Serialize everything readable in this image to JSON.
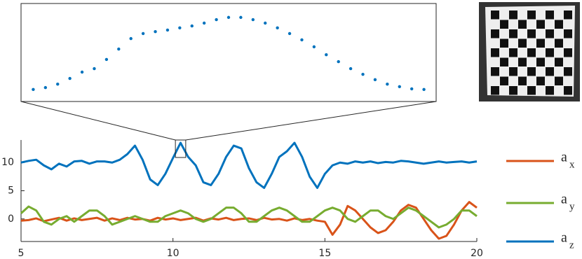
{
  "chart_data": {
    "type": "line",
    "x": [
      5,
      5.25,
      5.5,
      5.75,
      6,
      6.25,
      6.5,
      6.75,
      7,
      7.25,
      7.5,
      7.75,
      8,
      8.25,
      8.5,
      8.75,
      9,
      9.25,
      9.5,
      9.75,
      10,
      10.25,
      10.5,
      10.75,
      11,
      11.25,
      11.5,
      11.75,
      12,
      12.25,
      12.5,
      12.75,
      13,
      13.25,
      13.5,
      13.75,
      14,
      14.25,
      14.5,
      14.75,
      15,
      15.25,
      15.5,
      15.75,
      16,
      16.25,
      16.5,
      16.75,
      17,
      17.25,
      17.5,
      17.75,
      18,
      18.25,
      18.5,
      18.75,
      19,
      19.25,
      19.5,
      19.75,
      20
    ],
    "series": [
      {
        "name": "a",
        "subscript": "x",
        "color": "#d95319",
        "values": [
          -0.3,
          -0.2,
          0.1,
          -0.4,
          -0.1,
          0.2,
          -0.3,
          0.1,
          -0.2,
          0,
          0.2,
          -0.3,
          0.1,
          -0.2,
          0.2,
          -0.1,
          0,
          -0.3,
          0.2,
          -0.1,
          0.1,
          -0.2,
          0,
          0.2,
          -0.3,
          0.1,
          -0.1,
          0.2,
          -0.2,
          0,
          0.1,
          -0.2,
          0.2,
          -0.1,
          0,
          -0.3,
          0.1,
          -0.2,
          0,
          -0.3,
          -0.5,
          -2.8,
          -1,
          2.3,
          1.5,
          0,
          -1.5,
          -2.5,
          -2,
          -0.5,
          1.5,
          2.5,
          2,
          0,
          -2,
          -3.5,
          -3,
          -1,
          1.5,
          3,
          2
        ]
      },
      {
        "name": "a",
        "subscript": "y",
        "color": "#77ac30",
        "values": [
          1.0,
          2.2,
          1.5,
          -0.5,
          -1,
          0,
          0.5,
          -0.5,
          0.5,
          1.5,
          1.5,
          0.5,
          -1,
          -0.5,
          0,
          0.5,
          0,
          -0.5,
          -0.5,
          0.5,
          1.0,
          1.5,
          1,
          0,
          -0.5,
          0,
          1,
          2,
          2,
          1,
          -0.5,
          -0.5,
          0.5,
          1.5,
          2,
          1.5,
          0.5,
          -0.5,
          -0.5,
          0.5,
          1.5,
          2,
          1.5,
          0,
          -0.5,
          0.5,
          1.5,
          1.5,
          0.5,
          0,
          1,
          2,
          1.5,
          0.5,
          -0.5,
          -1.5,
          -1,
          0,
          1.5,
          1.5,
          0.5
        ]
      },
      {
        "name": "a",
        "subscript": "z",
        "color": "#0072bd",
        "values": [
          10,
          10.3,
          10.5,
          9.5,
          8.8,
          9.8,
          9.3,
          10.2,
          10.3,
          9.8,
          10.2,
          10.2,
          10,
          10.5,
          11.5,
          13,
          10.5,
          7,
          6,
          8,
          10.8,
          13.5,
          11,
          9.5,
          6.5,
          6,
          8,
          11,
          13,
          12.5,
          9,
          6.5,
          5.5,
          8,
          11,
          12,
          13.5,
          11,
          7.5,
          5.5,
          8,
          9.5,
          10,
          9.8,
          10.2,
          10,
          10.2,
          9.9,
          10.1,
          10,
          10.3,
          10.2,
          10,
          9.8,
          10,
          10.2,
          10,
          10.1,
          10.2,
          10,
          10.2
        ]
      }
    ],
    "xlim": [
      5,
      20
    ],
    "xticks": [
      5,
      10,
      15,
      20
    ],
    "ylim": [
      -4,
      14
    ],
    "yticks": [
      0,
      5,
      10
    ],
    "inset": {
      "series": 2,
      "color": "#0072bd",
      "xlim": [
        10.08,
        10.42
      ],
      "ylim": [
        10.9,
        14
      ],
      "x": [
        10.09,
        10.1,
        10.11,
        10.12,
        10.13,
        10.14,
        10.15,
        10.16,
        10.17,
        10.18,
        10.19,
        10.2,
        10.21,
        10.22,
        10.23,
        10.24,
        10.25,
        10.26,
        10.27,
        10.28,
        10.29,
        10.3,
        10.31,
        10.32,
        10.33,
        10.34,
        10.35,
        10.36,
        10.37,
        10.38,
        10.39,
        10.4,
        10.41
      ],
      "values": [
        11.28,
        11.34,
        11.45,
        11.63,
        11.83,
        11.94,
        12.23,
        12.56,
        12.89,
        13.05,
        13.11,
        13.16,
        13.23,
        13.29,
        13.38,
        13.49,
        13.56,
        13.56,
        13.49,
        13.38,
        13.23,
        13.05,
        12.85,
        12.63,
        12.38,
        12.16,
        11.94,
        11.76,
        11.59,
        11.45,
        11.37,
        11.3,
        11.28
      ]
    }
  }
}
